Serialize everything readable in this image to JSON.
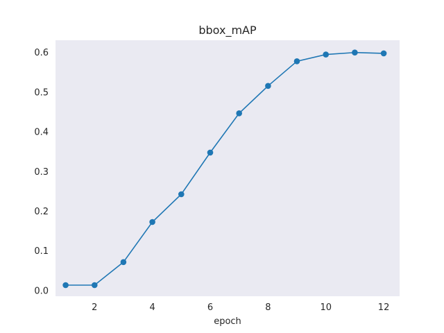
{
  "chart_data": {
    "type": "line",
    "title": "bbox_mAP",
    "xlabel": "epoch",
    "ylabel": "",
    "x": [
      1,
      2,
      3,
      4,
      5,
      6,
      7,
      8,
      9,
      10,
      11,
      12
    ],
    "series": [
      {
        "values": [
          0.013,
          0.013,
          0.071,
          0.172,
          0.242,
          0.347,
          0.446,
          0.515,
          0.577,
          0.594,
          0.599,
          0.597
        ]
      }
    ],
    "xlim": [
      0.65,
      12.55
    ],
    "ylim": [
      -0.015,
      0.63
    ],
    "xticks": [
      2,
      4,
      6,
      8,
      10,
      12
    ],
    "yticks": [
      0.0,
      0.1,
      0.2,
      0.3,
      0.4,
      0.5,
      0.6
    ],
    "xtick_labels": [
      "2",
      "4",
      "6",
      "8",
      "10",
      "12"
    ],
    "ytick_labels": [
      "0.0",
      "0.1",
      "0.2",
      "0.3",
      "0.4",
      "0.5",
      "0.6"
    ],
    "grid": false,
    "legend": "none",
    "colors": {
      "line": "#1f77b4",
      "plot_background": "#eaeaf2",
      "text": "#262626"
    }
  }
}
